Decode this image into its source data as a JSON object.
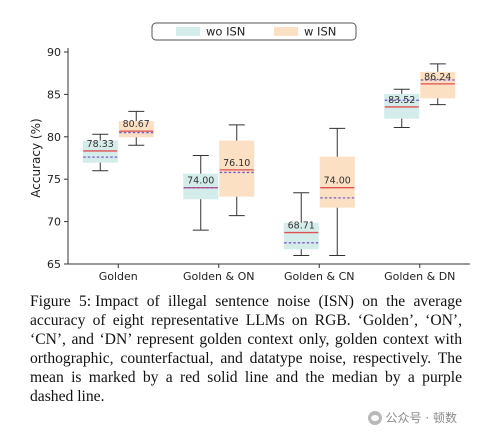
{
  "chart_data": {
    "type": "box",
    "ylabel": "Accuracy (%)",
    "xlabel": "",
    "ylim": [
      65,
      90
    ],
    "yticks": [
      65,
      70,
      75,
      80,
      85,
      90
    ],
    "legend_position": "top-center",
    "grid": false,
    "categories": [
      "Golden",
      "Golden & ON",
      "Golden & CN",
      "Golden & DN"
    ],
    "series": [
      {
        "name": "wo ISN",
        "color": "#d4ecea",
        "boxes": [
          {
            "whisker_low": 76.0,
            "q1": 77.0,
            "median": 77.6,
            "mean": 78.33,
            "q3": 79.5,
            "whisker_high": 80.3,
            "mean_label": "78.33"
          },
          {
            "whisker_low": 69.0,
            "q1": 72.7,
            "median": 74.0,
            "mean": 74.0,
            "q3": 75.6,
            "whisker_high": 77.8,
            "mean_label": "74.00"
          },
          {
            "whisker_low": 66.0,
            "q1": 66.8,
            "median": 67.5,
            "mean": 68.71,
            "q3": 69.8,
            "whisker_high": 73.4,
            "mean_label": "68.71"
          },
          {
            "whisker_low": 81.1,
            "q1": 82.2,
            "median": 84.3,
            "mean": 83.52,
            "q3": 85.0,
            "whisker_high": 85.6,
            "mean_label": "83.52"
          }
        ]
      },
      {
        "name": "w ISN",
        "color": "#fbe0c4",
        "boxes": [
          {
            "whisker_low": 79.0,
            "q1": 80.0,
            "median": 80.5,
            "mean": 80.67,
            "q3": 81.8,
            "whisker_high": 83.0,
            "mean_label": "80.67"
          },
          {
            "whisker_low": 70.7,
            "q1": 73.0,
            "median": 75.8,
            "mean": 76.1,
            "q3": 79.5,
            "whisker_high": 81.4,
            "mean_label": "76.10"
          },
          {
            "whisker_low": 66.0,
            "q1": 71.7,
            "median": 72.8,
            "mean": 74.0,
            "q3": 77.6,
            "whisker_high": 81.0,
            "mean_label": "74.00"
          },
          {
            "whisker_low": 83.8,
            "q1": 84.6,
            "median": 86.7,
            "mean": 86.24,
            "q3": 87.6,
            "whisker_high": 88.6,
            "mean_label": "86.24"
          }
        ]
      }
    ],
    "mean_line_color": "#e05050",
    "median_line_color": "#7b5cc8"
  },
  "caption": {
    "label": "Figure 5:",
    "text": "Impact of illegal sentence noise (ISN) on the average accuracy of eight representative LLMs on RGB. ‘Golden’, ‘ON’, ‘CN’, and ‘DN’ represent golden context only, golden context with orthographic, counterfactual, and datatype noise, respectively. The mean is marked by a red solid line and the median by a purple dashed line."
  },
  "watermark": {
    "text": "公众号 · 顿数"
  }
}
